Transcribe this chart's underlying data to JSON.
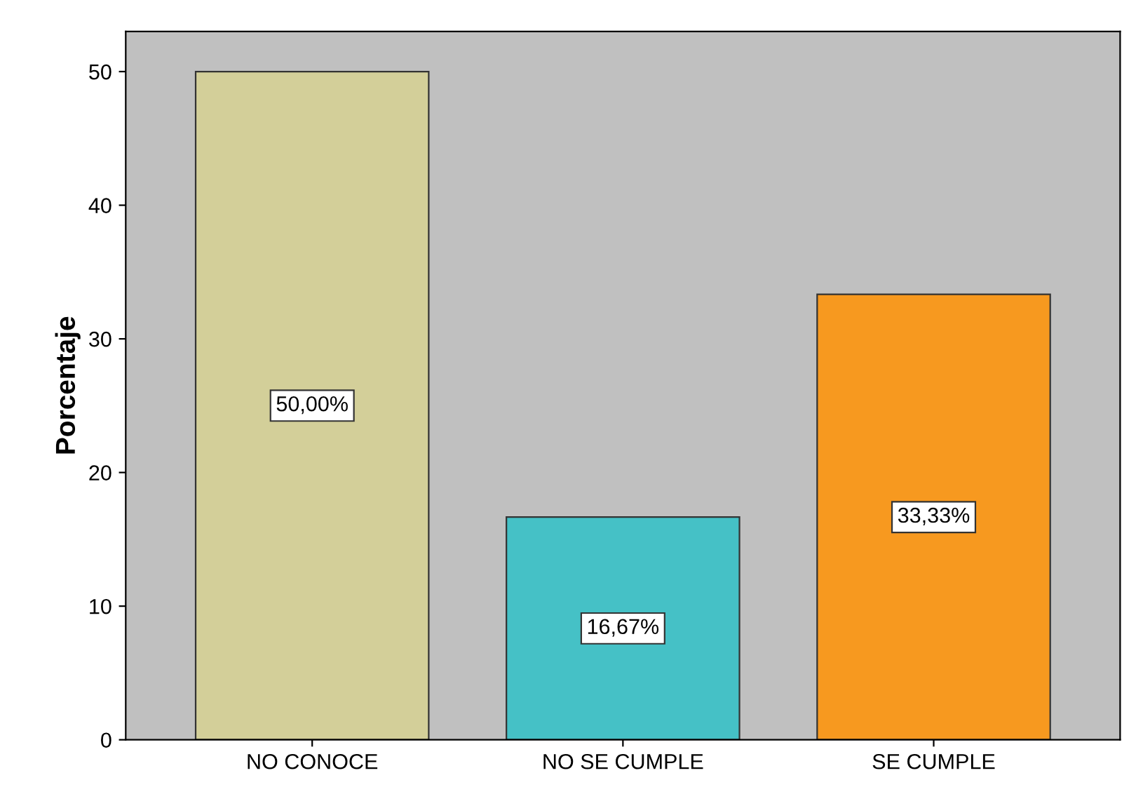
{
  "chart_data": {
    "type": "bar",
    "ylabel": "Porcentaje",
    "categories": [
      "NO CONOCE",
      "NO SE CUMPLE",
      "SE CUMPLE"
    ],
    "values": [
      50.0,
      16.67,
      33.33
    ],
    "colors": [
      "#d3cf99",
      "#45c1c6",
      "#f7991f"
    ],
    "value_labels": [
      "50,00%",
      "16,67%",
      "33,33%"
    ],
    "ylim": [
      0,
      53
    ],
    "yticks": [
      0,
      10,
      20,
      30,
      40,
      50
    ],
    "grid": false
  }
}
